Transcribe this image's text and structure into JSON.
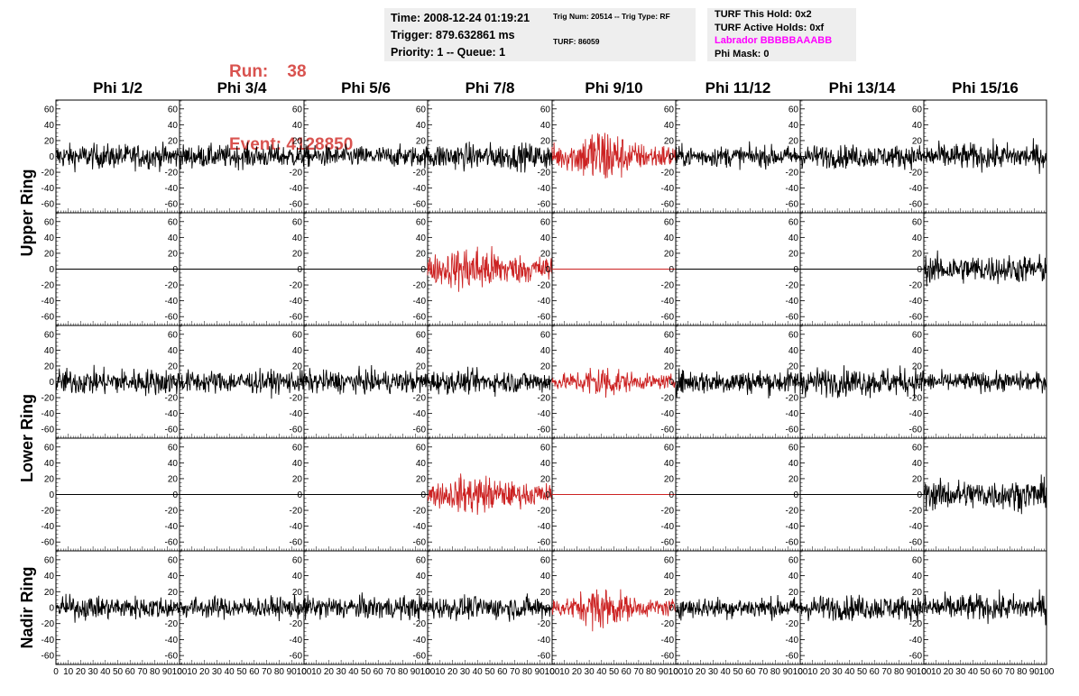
{
  "header": {
    "run_label": "Run:    38",
    "event_label": "Event: 4128850",
    "time": "Time: 2008-12-24 01:19:21",
    "trigger": "Trigger: 879.632861 ms",
    "priority": "Priority: 1 -- Queue: 1",
    "trig_num": "Trig Num: 20514 -- Trig Type: RF",
    "turf": "TURF: 86059",
    "turf_hold": "TURF This Hold: 0x2",
    "turf_active": "TURF Active Holds: 0xf",
    "labrador": "Labrador BBBBBAAABB",
    "phi_mask": "Phi Mask: 0"
  },
  "colors": {
    "header_red": "#d9534f",
    "trace_black": "#000000",
    "trace_red": "#cc2222",
    "labrador": "#ff00ff",
    "box_bg": "#eeeeee"
  },
  "chart_data": {
    "type": "line",
    "columns": [
      "Phi 1/2",
      "Phi 3/4",
      "Phi 5/6",
      "Phi 7/8",
      "Phi 9/10",
      "Phi 11/12",
      "Phi 13/14",
      "Phi 15/16"
    ],
    "ring_labels": [
      {
        "label": "Upper Ring",
        "rows": [
          0,
          1
        ]
      },
      {
        "label": "Lower Ring",
        "rows": [
          2,
          3
        ]
      },
      {
        "label": "Nadir Ring",
        "rows": [
          4
        ]
      }
    ],
    "ylim": [
      -70,
      70
    ],
    "xlim": [
      0,
      100
    ],
    "yticks": [
      -60,
      -40,
      -20,
      0,
      20,
      40,
      60
    ],
    "xtick_labels": [
      "0",
      "10",
      "20",
      "30",
      "40",
      "50",
      "60",
      "70",
      "80",
      "90",
      "100"
    ],
    "grid": false,
    "panels": [
      [
        "noise",
        "noise",
        "noise",
        "noise",
        "red-burst",
        "noise",
        "noise",
        "noise"
      ],
      [
        "flat",
        "flat",
        "flat",
        "red-noise",
        "red-flat",
        "flat",
        "flat",
        "noise"
      ],
      [
        "noise",
        "noise",
        "noise",
        "noise",
        "red-burst",
        "noise",
        "noise",
        "noise"
      ],
      [
        "flat",
        "flat",
        "flat",
        "red-noise",
        "red-flat",
        "flat",
        "flat",
        "noise"
      ],
      [
        "noise",
        "noise",
        "noise",
        "noise",
        "red-burst",
        "noise",
        "noise",
        "noise"
      ]
    ],
    "amplitudes": [
      [
        14,
        13,
        12,
        15,
        26,
        12,
        13,
        15
      ],
      [
        0,
        0,
        0,
        22,
        0,
        0,
        0,
        16
      ],
      [
        15,
        13,
        13,
        13,
        15,
        14,
        16,
        11
      ],
      [
        0,
        0,
        0,
        18,
        0,
        0,
        0,
        17
      ],
      [
        13,
        12,
        13,
        13,
        18,
        12,
        14,
        15
      ]
    ]
  }
}
